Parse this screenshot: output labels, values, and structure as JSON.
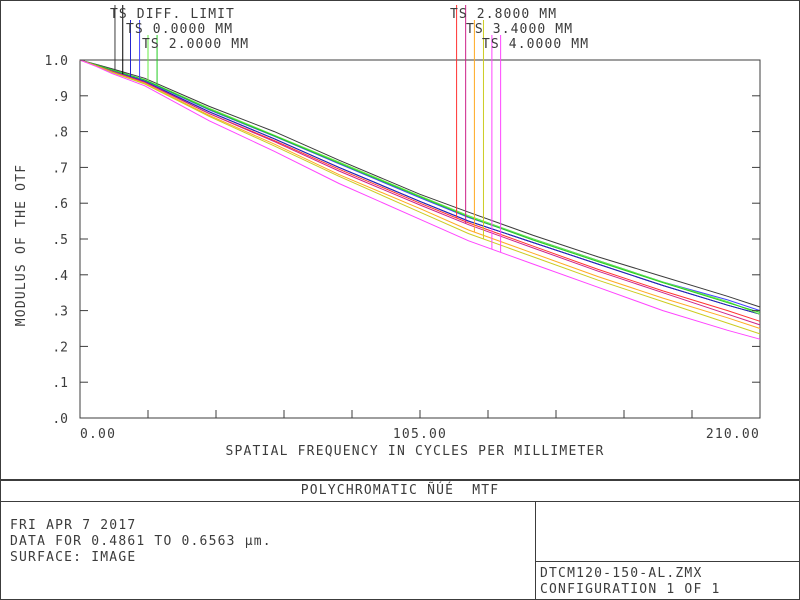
{
  "chart_data": {
    "type": "line",
    "title": "POLYCHROMATIC ÑÚÉ  MTF",
    "xlabel": "SPATIAL FREQUENCY IN CYCLES PER MILLIMETER",
    "ylabel": "MODULUS OF THE OTF",
    "xlim": [
      0,
      210
    ],
    "ylim": [
      0,
      1.0
    ],
    "x_tick_labels": [
      {
        "value": 0,
        "label": "0.00"
      },
      {
        "value": 105,
        "label": "105.00"
      },
      {
        "value": 210,
        "label": "210.00"
      }
    ],
    "y_tick_labels": [
      {
        "value": 1.0,
        "label": "1.0"
      },
      {
        "value": 0.9,
        "label": ".9"
      },
      {
        "value": 0.8,
        "label": ".8"
      },
      {
        "value": 0.7,
        "label": ".7"
      },
      {
        "value": 0.6,
        "label": ".6"
      },
      {
        "value": 0.5,
        "label": ".5"
      },
      {
        "value": 0.4,
        "label": ".4"
      },
      {
        "value": 0.3,
        "label": ".3"
      },
      {
        "value": 0.2,
        "label": ".2"
      },
      {
        "value": 0.1,
        "label": ".1"
      },
      {
        "value": 0.0,
        "label": ".0"
      }
    ],
    "grid": false,
    "legend_placement": "top",
    "legend_labels": [
      {
        "text": "TS DIFF. LIMIT",
        "column": "left",
        "row": 0
      },
      {
        "text": "TS 0.0000 MM",
        "column": "left",
        "row": 1
      },
      {
        "text": "TS 2.0000 MM",
        "column": "left",
        "row": 2
      },
      {
        "text": "TS 2.8000 MM",
        "column": "right",
        "row": 0
      },
      {
        "text": "TS 3.4000 MM",
        "column": "right",
        "row": 1
      },
      {
        "text": "TS 4.0000 MM",
        "column": "right",
        "row": 2
      }
    ],
    "series": [
      {
        "color": "#3c3c3c",
        "x": [
          0,
          5,
          10,
          20,
          40,
          60,
          80,
          105,
          120,
          140,
          160,
          180,
          200,
          210
        ],
        "y": [
          1.0,
          0.988,
          0.975,
          0.949,
          0.87,
          0.8,
          0.72,
          0.625,
          0.575,
          0.51,
          0.45,
          0.395,
          0.34,
          0.31
        ]
      },
      {
        "color": "#000000",
        "x": [
          0,
          5,
          10,
          20,
          40,
          60,
          80,
          105,
          120,
          140,
          160,
          180,
          200,
          210
        ],
        "y": [
          1.0,
          0.985,
          0.97,
          0.94,
          0.855,
          0.78,
          0.7,
          0.605,
          0.55,
          0.49,
          0.43,
          0.37,
          0.315,
          0.29
        ]
      },
      {
        "color": "#2222cc",
        "x": [
          0,
          5,
          10,
          20,
          40,
          60,
          80,
          105,
          120,
          140,
          160,
          180,
          200,
          210
        ],
        "y": [
          1.0,
          0.985,
          0.97,
          0.94,
          0.855,
          0.78,
          0.7,
          0.605,
          0.55,
          0.49,
          0.43,
          0.37,
          0.315,
          0.29
        ]
      },
      {
        "color": "#4444ff",
        "x": [
          0,
          5,
          10,
          20,
          40,
          60,
          80,
          105,
          120,
          140,
          160,
          180,
          200,
          210
        ],
        "y": [
          1.0,
          0.986,
          0.972,
          0.943,
          0.86,
          0.787,
          0.71,
          0.615,
          0.56,
          0.5,
          0.44,
          0.38,
          0.33,
          0.3
        ]
      },
      {
        "color": "#66ee44",
        "x": [
          0,
          5,
          10,
          20,
          40,
          60,
          80,
          105,
          120,
          140,
          160,
          180,
          200,
          210
        ],
        "y": [
          1.0,
          0.986,
          0.972,
          0.945,
          0.865,
          0.79,
          0.715,
          0.62,
          0.565,
          0.5,
          0.44,
          0.38,
          0.325,
          0.29
        ]
      },
      {
        "color": "#22cc22",
        "x": [
          0,
          5,
          10,
          20,
          40,
          60,
          80,
          105,
          120,
          140,
          160,
          180,
          200,
          210
        ],
        "y": [
          1.0,
          0.986,
          0.972,
          0.944,
          0.862,
          0.788,
          0.712,
          0.618,
          0.562,
          0.497,
          0.437,
          0.378,
          0.322,
          0.295
        ]
      },
      {
        "color": "#ff3333",
        "x": [
          0,
          5,
          10,
          20,
          40,
          60,
          80,
          105,
          120,
          140,
          160,
          180,
          200,
          210
        ],
        "y": [
          1.0,
          0.984,
          0.968,
          0.938,
          0.85,
          0.775,
          0.695,
          0.6,
          0.545,
          0.48,
          0.415,
          0.355,
          0.3,
          0.27
        ]
      },
      {
        "color": "#cc2288",
        "x": [
          0,
          5,
          10,
          20,
          40,
          60,
          80,
          105,
          120,
          140,
          160,
          180,
          200,
          210
        ],
        "y": [
          1.0,
          0.984,
          0.968,
          0.938,
          0.85,
          0.772,
          0.69,
          0.595,
          0.54,
          0.475,
          0.41,
          0.35,
          0.29,
          0.26
        ]
      },
      {
        "color": "#ffaa22",
        "x": [
          0,
          5,
          10,
          20,
          40,
          60,
          80,
          105,
          120,
          140,
          160,
          180,
          200,
          210
        ],
        "y": [
          1.0,
          0.984,
          0.966,
          0.935,
          0.845,
          0.765,
          0.68,
          0.585,
          0.525,
          0.46,
          0.395,
          0.335,
          0.28,
          0.25
        ]
      },
      {
        "color": "#cccc22",
        "x": [
          0,
          5,
          10,
          20,
          40,
          60,
          80,
          105,
          120,
          140,
          160,
          180,
          200,
          210
        ],
        "y": [
          1.0,
          0.983,
          0.965,
          0.933,
          0.842,
          0.76,
          0.675,
          0.575,
          0.515,
          0.45,
          0.385,
          0.325,
          0.265,
          0.235
        ]
      },
      {
        "color": "#ff44ff",
        "x": [
          0,
          5,
          10,
          20,
          40,
          60,
          80,
          105,
          120,
          140,
          160,
          180,
          200,
          210
        ],
        "y": [
          1.0,
          0.982,
          0.962,
          0.928,
          0.83,
          0.745,
          0.655,
          0.555,
          0.495,
          0.43,
          0.365,
          0.3,
          0.245,
          0.22
        ]
      }
    ],
    "markers": [
      {
        "color": "#3c3c3c",
        "column": "left",
        "row": 0,
        "x": 10.8
      },
      {
        "color": "#000000",
        "column": "left",
        "row": 0,
        "x": 13.2
      },
      {
        "color": "#2222cc",
        "column": "left",
        "row": 1,
        "x": 15.6
      },
      {
        "color": "#4444ff",
        "column": "left",
        "row": 1,
        "x": 18.4
      },
      {
        "color": "#66ee44",
        "column": "left",
        "row": 2,
        "x": 21.0
      },
      {
        "color": "#22cc22",
        "column": "left",
        "row": 2,
        "x": 23.8
      },
      {
        "color": "#ff3333",
        "column": "right",
        "row": 0,
        "x": 116.3
      },
      {
        "color": "#cc2288",
        "column": "right",
        "row": 0,
        "x": 119.1
      },
      {
        "color": "#ffaa22",
        "column": "right",
        "row": 1,
        "x": 121.8
      },
      {
        "color": "#cccc22",
        "column": "right",
        "row": 1,
        "x": 124.6
      },
      {
        "color": "#ff44ff",
        "column": "right",
        "row": 2,
        "x": 127.2
      },
      {
        "color": "#ff44ff",
        "column": "right",
        "row": 2,
        "x": 129.9
      }
    ]
  },
  "footer": {
    "date_line": "FRI APR 7 2017",
    "data_line": "DATA FOR 0.4861 TO 0.6563 µm.",
    "surface_line": "SURFACE: IMAGE",
    "file_name": "DTCM120-150-AL.ZMX",
    "configuration": "CONFIGURATION 1 OF 1"
  }
}
